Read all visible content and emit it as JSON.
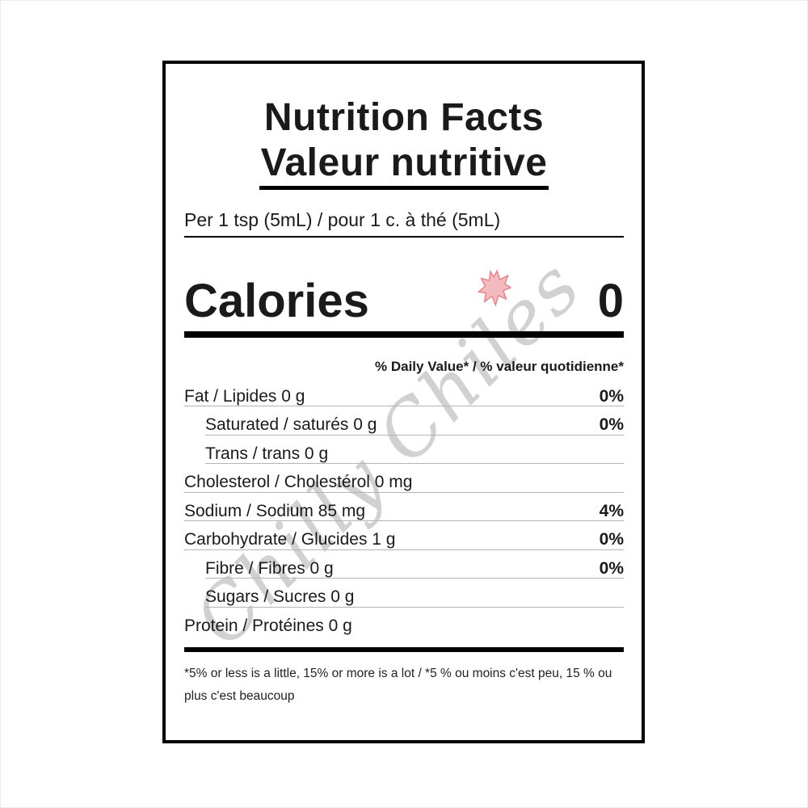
{
  "page": {
    "background": "#ffffff"
  },
  "label": {
    "title_en": "Nutrition Facts",
    "title_fr": "Valeur nutritive",
    "serving_line": "Per 1 tsp (5mL) / pour 1 c. à thé (5mL)",
    "calories_label": "Calories",
    "calories_value": "0",
    "daily_value_header": "% Daily Value* / % valeur quotidienne*",
    "rows": [
      {
        "name": "Fat / Lipides 0 g",
        "dv": "0%",
        "indent": false,
        "line": true
      },
      {
        "name": "Saturated / saturés 0 g",
        "dv": "0%",
        "indent": true,
        "line": true
      },
      {
        "name": "Trans / trans 0 g",
        "dv": "",
        "indent": true,
        "line": true
      },
      {
        "name": "Cholesterol / Cholestérol 0 mg",
        "dv": "",
        "indent": false,
        "line": true
      },
      {
        "name": "Sodium / Sodium 85 mg",
        "dv": "4%",
        "indent": false,
        "line": true
      },
      {
        "name": "Carbohydrate / Glucides 1 g",
        "dv": "0%",
        "indent": false,
        "line": true
      },
      {
        "name": "Fibre / Fibres 0 g",
        "dv": "0%",
        "indent": true,
        "line": true
      },
      {
        "name": "Sugars / Sucres 0 g",
        "dv": "",
        "indent": true,
        "line": true
      },
      {
        "name": "Protein / Protéines 0 g",
        "dv": "",
        "indent": false,
        "line": false
      }
    ],
    "footnote": "*5% or less is a little, 15% or more is a lot / *5 % ou moins c'est peu, 15 % ou plus c'est beaucoup"
  },
  "watermark": {
    "text": "Chilly Chiles",
    "text_color": "#919191",
    "splat_fill": "#f2b3b8",
    "splat_edge": "#e07880"
  },
  "colors": {
    "border": "#000000",
    "hairline": "#b5b5b5",
    "text": "#1a1a1a"
  }
}
